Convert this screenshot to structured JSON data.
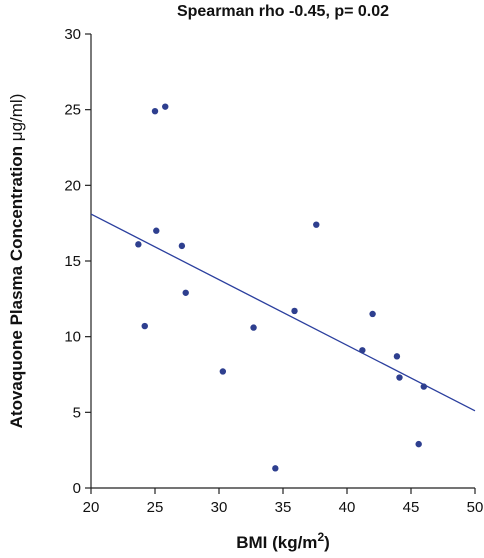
{
  "chart_data": {
    "type": "scatter",
    "title": "Spearman rho -0.45, p= 0.02",
    "xlabel_main": "BMI (kg/m",
    "xlabel_sup": "2",
    "xlabel_tail": ")",
    "ylabel_main": "Atovaquone Plasma Concentration ",
    "ylabel_unit": "μg/ml)",
    "xlim": [
      20,
      50
    ],
    "ylim": [
      0,
      30
    ],
    "x_ticks": [
      20,
      25,
      30,
      35,
      40,
      45,
      50
    ],
    "y_ticks": [
      0,
      5,
      10,
      15,
      20,
      25,
      30
    ],
    "x_tick_labels": [
      "20",
      "25",
      "30",
      "35",
      "40",
      "45",
      "50"
    ],
    "y_tick_labels": [
      "0",
      "5",
      "10",
      "15",
      "20",
      "25",
      "30"
    ],
    "grid": false,
    "series": [
      {
        "points": [
          {
            "x": 23.7,
            "y": 16.1
          },
          {
            "x": 24.2,
            "y": 10.7
          },
          {
            "x": 25.0,
            "y": 24.9
          },
          {
            "x": 25.1,
            "y": 17.0
          },
          {
            "x": 25.8,
            "y": 25.2
          },
          {
            "x": 27.1,
            "y": 16.0
          },
          {
            "x": 27.4,
            "y": 12.9
          },
          {
            "x": 30.3,
            "y": 7.7
          },
          {
            "x": 32.7,
            "y": 10.6
          },
          {
            "x": 34.4,
            "y": 1.3
          },
          {
            "x": 35.9,
            "y": 11.7
          },
          {
            "x": 37.6,
            "y": 17.4
          },
          {
            "x": 41.2,
            "y": 9.1
          },
          {
            "x": 42.0,
            "y": 11.5
          },
          {
            "x": 43.9,
            "y": 8.7
          },
          {
            "x": 44.1,
            "y": 7.3
          },
          {
            "x": 45.6,
            "y": 2.9
          },
          {
            "x": 46.0,
            "y": 6.7
          }
        ]
      }
    ],
    "trendline": {
      "x": [
        20,
        50
      ],
      "y": [
        18.1,
        5.1
      ]
    },
    "colors": {
      "points": "#2e3f8f",
      "trendline": "#2b3f9e",
      "axes": "#222222",
      "text": "#111111"
    }
  }
}
